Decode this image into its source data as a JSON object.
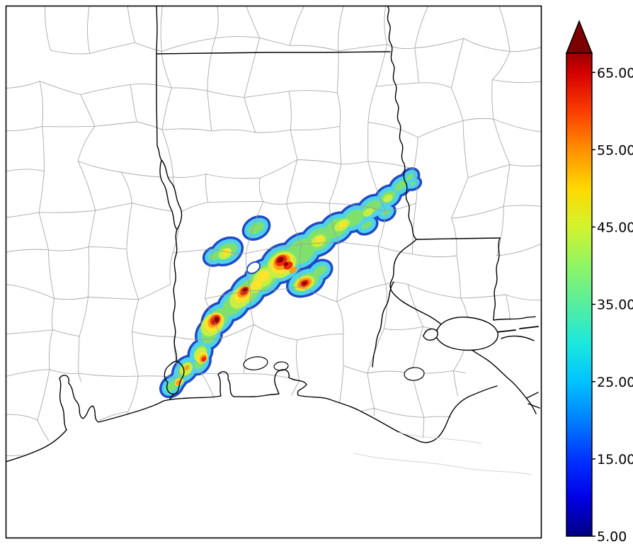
{
  "colorbar": {
    "tick_labels": [
      "65.00",
      "55.00",
      "45.00",
      "35.00",
      "25.00",
      "15.00",
      "5.00"
    ],
    "tick_values": [
      65,
      55,
      45,
      35,
      25,
      15,
      5
    ],
    "min_value": 5,
    "max_value": 67.5,
    "overflow_arrow_color": "#7d0000",
    "gradient_stops": [
      {
        "value": 5,
        "color": "#000082"
      },
      {
        "value": 10,
        "color": "#0000e6"
      },
      {
        "value": 15,
        "color": "#0033ff"
      },
      {
        "value": 20,
        "color": "#0080ff"
      },
      {
        "value": 25,
        "color": "#00c3ff"
      },
      {
        "value": 30,
        "color": "#1ce8dc"
      },
      {
        "value": 35,
        "color": "#56ee9e"
      },
      {
        "value": 40,
        "color": "#8ff464"
      },
      {
        "value": 45,
        "color": "#d2f42e"
      },
      {
        "value": 50,
        "color": "#ffd800"
      },
      {
        "value": 55,
        "color": "#ff9000"
      },
      {
        "value": 60,
        "color": "#fb3c00"
      },
      {
        "value": 65,
        "color": "#d40000"
      },
      {
        "value": 67.5,
        "color": "#9b0000"
      }
    ]
  },
  "map_palette": {
    "contour_edge": "#2049c8",
    "fill_levels": [
      "#4fd2e8",
      "#80e06e",
      "#c6ee45",
      "#ffe22a",
      "#ff9c15",
      "#ea2a0c",
      "#8a0000"
    ],
    "county_line": "#9a9a9a",
    "border_line": "#000000",
    "background": "#ffffff"
  }
}
